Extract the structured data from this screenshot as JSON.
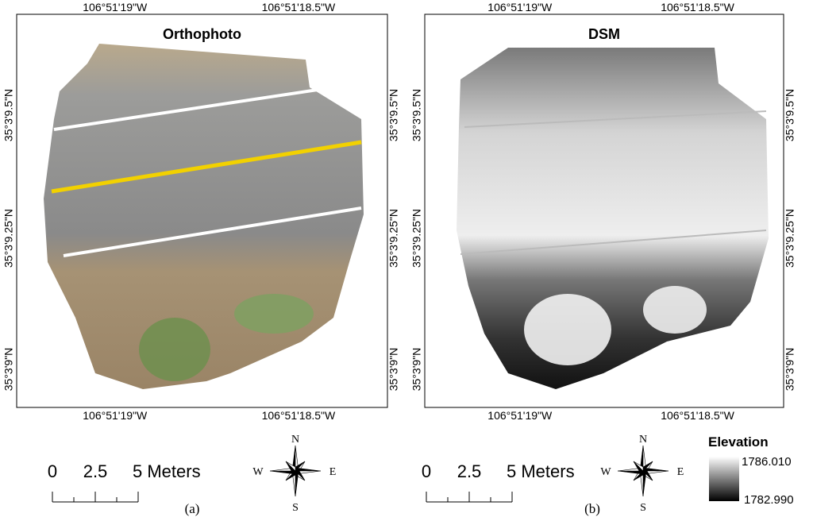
{
  "panels": [
    {
      "title": "Orthophoto",
      "caption": "(a)",
      "top_labels": [
        "106°51'19\"W",
        "106°51'18.5\"W"
      ],
      "bottom_labels": [
        "106°51'19\"W",
        "106°51'18.5\"W"
      ],
      "left_labels": [
        "35°3'9.5\"N",
        "35°3'9.25\"N",
        "35°3'9\"N"
      ],
      "right_labels": [
        "35°3'9.5\"N",
        "35°3'9.25\"N",
        "35°3'9\"N"
      ],
      "scale_bar": [
        "0",
        "2.5",
        "5 Meters"
      ],
      "compass": {
        "n": "N",
        "s": "S",
        "e": "E",
        "w": "W"
      }
    },
    {
      "title": "DSM",
      "caption": "(b)",
      "top_labels": [
        "106°51'19\"W",
        "106°51'18.5\"W"
      ],
      "bottom_labels": [
        "106°51'19\"W",
        "106°51'18.5\"W"
      ],
      "left_labels": [
        "35°3'9.5\"N",
        "35°3'9.25\"N",
        "35°3'9\"N"
      ],
      "right_labels": [
        "35°3'9.5\"N",
        "35°3'9.25\"N",
        "35°3'9\"N"
      ],
      "scale_bar": [
        "0",
        "2.5",
        "5 Meters"
      ],
      "compass": {
        "n": "N",
        "s": "S",
        "e": "E",
        "w": "W"
      }
    }
  ],
  "legend": {
    "title": "Elevation",
    "max": "1786.010",
    "min": "1782.990"
  }
}
